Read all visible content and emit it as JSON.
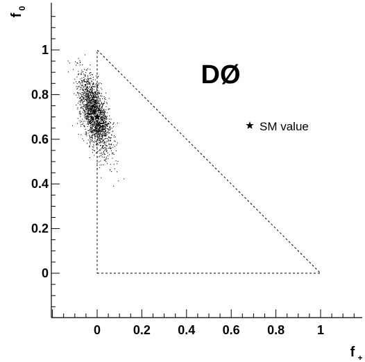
{
  "chart_data": {
    "type": "scatter",
    "title": "",
    "experiment_label": "DØ",
    "xlabel": {
      "main": "f",
      "subscript": "+"
    },
    "ylabel": {
      "main": "f",
      "subscript": "0"
    },
    "xlim": [
      -0.2,
      1.2
    ],
    "ylim": [
      -0.2,
      1.2
    ],
    "x_ticks": [
      {
        "value": 0,
        "label": "0"
      },
      {
        "value": 0.2,
        "label": "0.2"
      },
      {
        "value": 0.4,
        "label": "0.4"
      },
      {
        "value": 0.6,
        "label": "0.6"
      },
      {
        "value": 0.8,
        "label": "0.8"
      },
      {
        "value": 1,
        "label": "1"
      }
    ],
    "y_ticks": [
      {
        "value": 0,
        "label": "0"
      },
      {
        "value": 0.2,
        "label": "0.2"
      },
      {
        "value": 0.4,
        "label": "0.4"
      },
      {
        "value": 0.6,
        "label": "0.6"
      },
      {
        "value": 0.8,
        "label": "0.8"
      },
      {
        "value": 1,
        "label": "1"
      }
    ],
    "physical_region": {
      "style": "dashed",
      "vertices": [
        [
          0,
          0
        ],
        [
          1,
          0
        ],
        [
          0,
          1
        ]
      ]
    },
    "sm_value": {
      "x": 0,
      "y": 0.7,
      "marker": "star",
      "legend_label": "SM value"
    },
    "scatter_cloud": {
      "center": [
        -0.01,
        0.71
      ],
      "x_spread": 0.035,
      "y_spread": 0.085,
      "correlation": -0.6,
      "n_points": 2000,
      "color": "#000000"
    }
  }
}
